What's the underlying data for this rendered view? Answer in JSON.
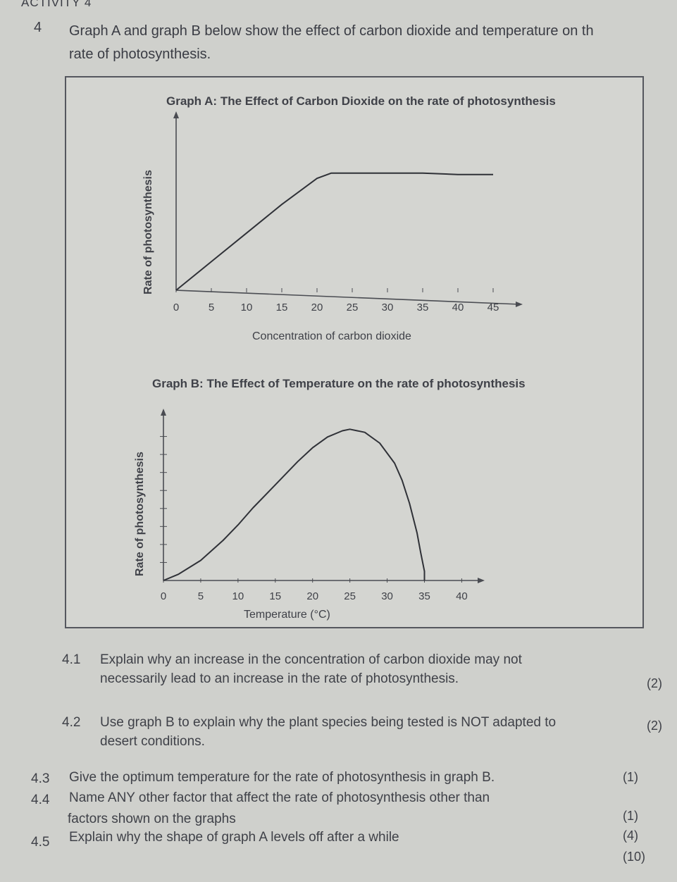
{
  "header": {
    "activity": "ACTIVITY 4",
    "question_number": "4",
    "intro_line1": "Graph A and graph B below show the effect of carbon dioxide and temperature on th",
    "intro_line2": "rate of photosynthesis."
  },
  "chart_data": [
    {
      "type": "line",
      "title": "Graph A: The Effect of Carbon Dioxide on the rate of photosynthesis",
      "xlabel": "Concentration of carbon dioxide",
      "ylabel": "Rate of photosynthesis",
      "x_ticks": [
        "0",
        "5",
        "10",
        "15",
        "20",
        "25",
        "30",
        "35",
        "40",
        "45"
      ],
      "x": [
        0,
        5,
        10,
        15,
        20,
        22,
        25,
        30,
        35,
        40,
        45
      ],
      "y": [
        0.0,
        0.22,
        0.44,
        0.66,
        0.86,
        0.9,
        0.9,
        0.9,
        0.9,
        0.89,
        0.89
      ],
      "xlim": [
        0,
        47
      ],
      "ylim": [
        0,
        1.3
      ],
      "grid": false
    },
    {
      "type": "line",
      "title": "Graph B: The Effect of Temperature on the rate of photosynthesis",
      "xlabel": "Temperature (°C)",
      "ylabel": "Rate of photosynthesis",
      "x_ticks": [
        "0",
        "5",
        "10",
        "15",
        "20",
        "25",
        "30",
        "35",
        "40"
      ],
      "x": [
        0,
        2,
        5,
        8,
        10,
        12,
        15,
        18,
        20,
        22,
        24,
        25,
        26,
        27,
        29,
        31,
        32,
        33,
        34,
        34.5,
        35,
        35
      ],
      "y": [
        0.0,
        0.04,
        0.13,
        0.26,
        0.36,
        0.47,
        0.62,
        0.77,
        0.86,
        0.93,
        0.97,
        0.98,
        0.97,
        0.96,
        0.89,
        0.76,
        0.65,
        0.5,
        0.31,
        0.18,
        0.06,
        0.0
      ],
      "xlim": [
        0,
        41
      ],
      "ylim": [
        0,
        1.05
      ],
      "grid": false
    }
  ],
  "questions": [
    {
      "num": "4.1",
      "line1": "Explain why an increase in the concentration of carbon dioxide may not",
      "line2": "necessarily lead to an increase in the rate of photosynthesis.",
      "marks": "(2)"
    },
    {
      "num": "4.2",
      "line1": "Use graph B to explain why the plant species being tested is NOT adapted to",
      "line2": "desert conditions.",
      "marks": "(2)"
    },
    {
      "num": "4.3",
      "line1": "Give the optimum temperature for the rate of photosynthesis in graph B.",
      "marks": "(1)"
    },
    {
      "num": "4.4",
      "line1": "Name ANY other factor that affect the rate of photosynthesis other than",
      "line2": "factors shown on the graphs",
      "marks": "(1)"
    },
    {
      "num": "4.5",
      "line1": "Explain why the shape of graph A levels off after a while",
      "marks": "(4)"
    }
  ],
  "total_marks": "(10)"
}
